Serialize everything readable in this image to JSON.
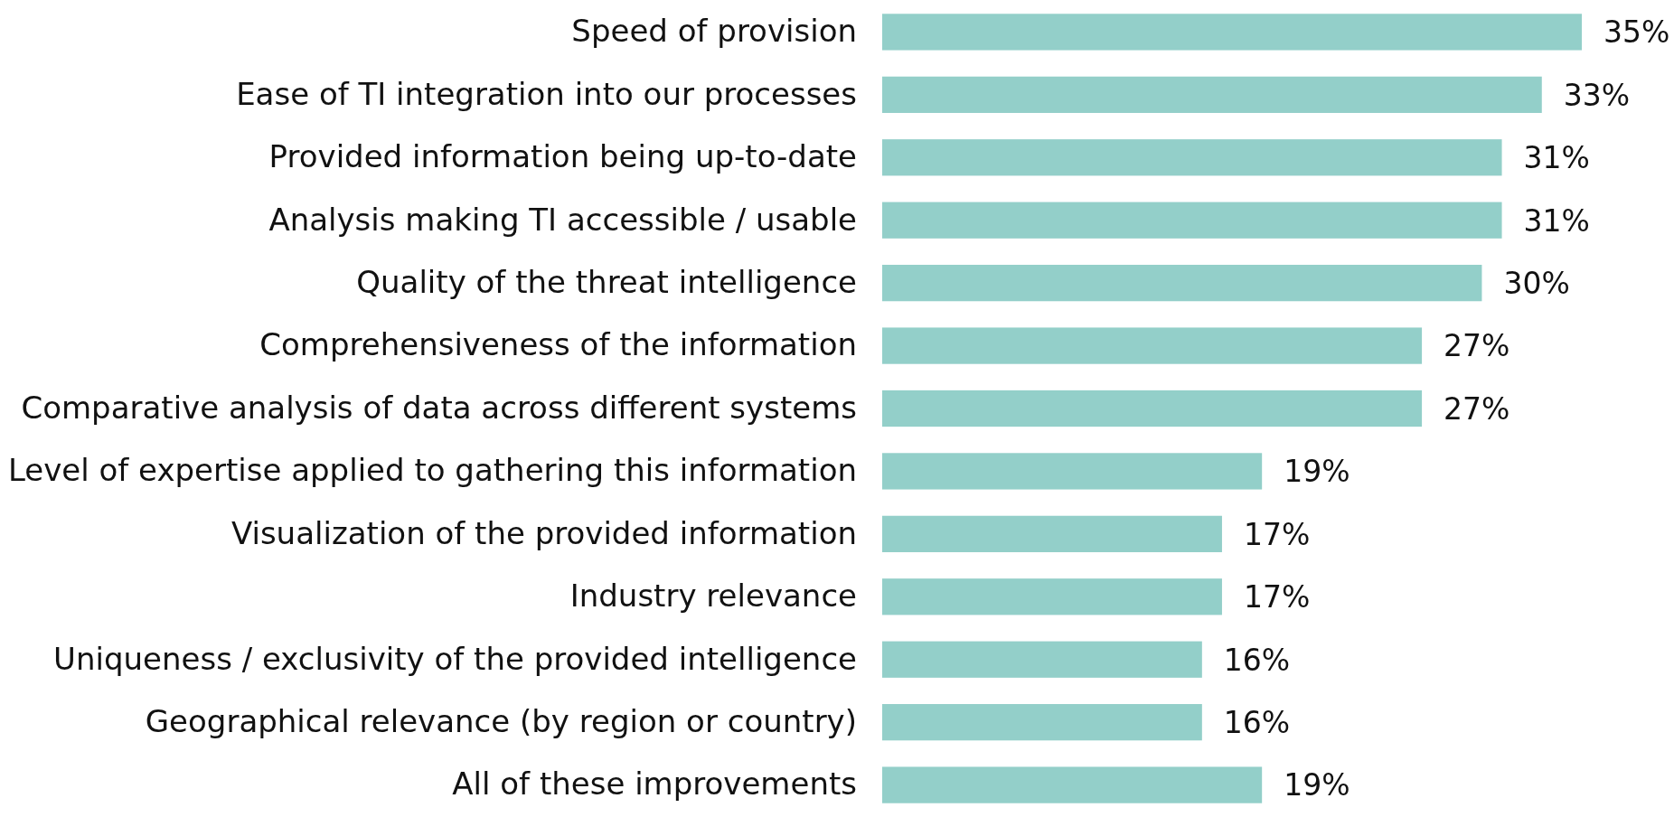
{
  "chart_data": {
    "type": "bar",
    "orientation": "horizontal",
    "categories": [
      "Speed of provision",
      "Ease of TI integration into our processes",
      "Provided information being up-to-date",
      "Analysis making TI accessible / usable",
      "Quality of the threat intelligence",
      "Comprehensiveness of the information",
      "Comparative analysis of data across different systems",
      "Level of expertise applied to gathering this information",
      "Visualization of the provided information",
      "Industry relevance",
      "Uniqueness / exclusivity of the provided intelligence",
      "Geographical relevance (by region or country)",
      "All of these improvements"
    ],
    "values": [
      35,
      33,
      31,
      31,
      30,
      27,
      27,
      19,
      17,
      17,
      16,
      16,
      19
    ],
    "value_labels": [
      "35%",
      "33%",
      "31%",
      "31%",
      "30%",
      "27%",
      "27%",
      "19%",
      "17%",
      "17%",
      "16%",
      "16%",
      "19%"
    ],
    "color": "#93cfc9",
    "tick_labels": "y"
  }
}
